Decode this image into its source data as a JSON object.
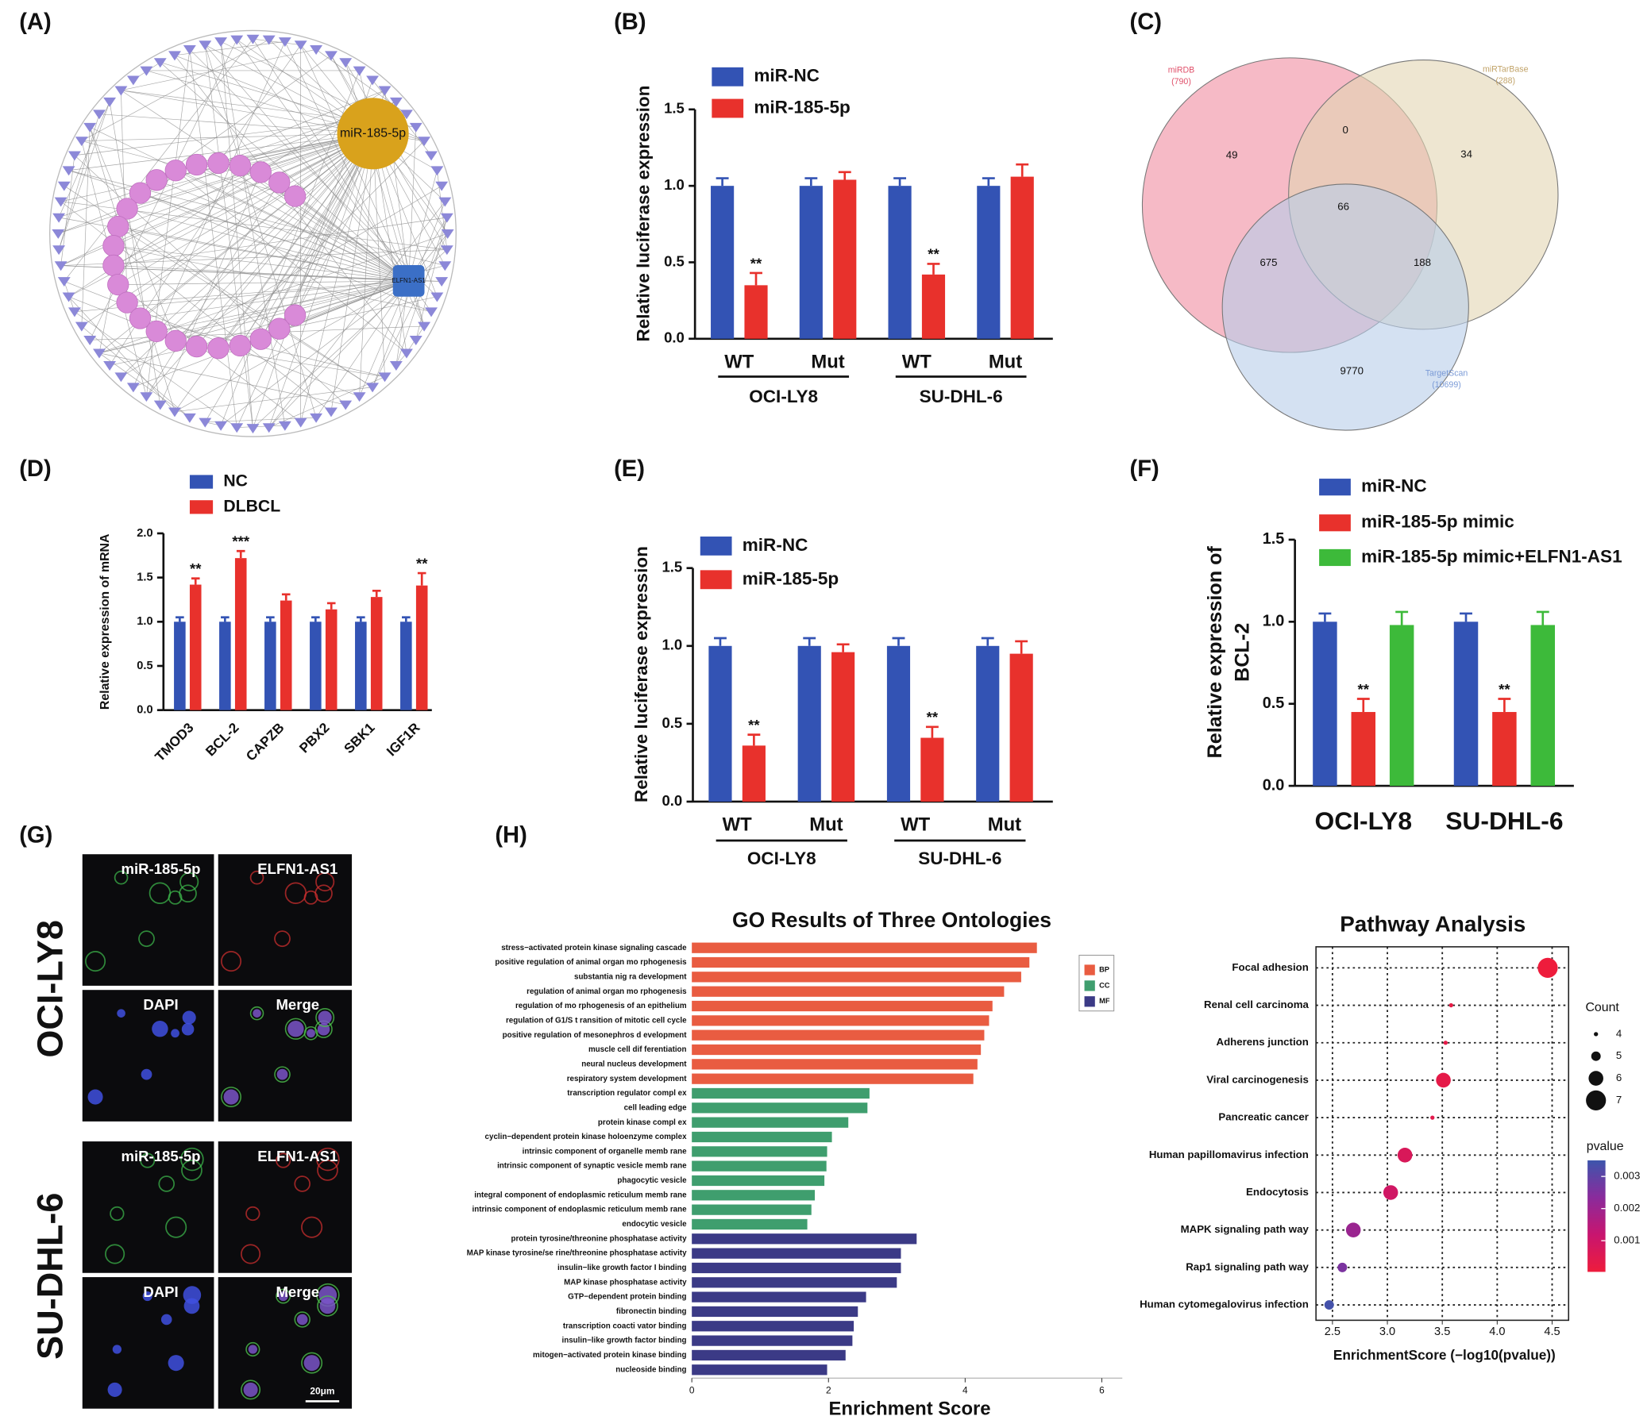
{
  "chart_data": [
    {
      "type": "network",
      "panel": "(A)",
      "nodes": [
        "miR-185-5p",
        "ELFN1-AS1"
      ],
      "node_colors": [
        "#d9a21c",
        "#3b6fc6"
      ],
      "mirna_color": "#d98ad8",
      "mrna_color": "#8c88d8"
    },
    {
      "type": "bar",
      "panel": "(B)",
      "categories": [
        "WT",
        "Mut",
        "WT",
        "Mut"
      ],
      "group_labels": [
        "OCI-LY8",
        "SU-DHL-6"
      ],
      "ylabel": "Relative luciferase expression",
      "ylim": [
        0,
        1.5
      ],
      "yticks": [
        {
          "value": 0,
          "label": "0.0"
        },
        0.5,
        {
          "value": 1,
          "label": "1.0"
        },
        1.5
      ],
      "legend": "top",
      "series": [
        {
          "name": "miR-NC",
          "color": "#3353b4",
          "values": [
            1,
            1,
            1,
            1
          ],
          "errors": [
            0.05,
            0.05,
            0.05,
            0.05
          ]
        },
        {
          "name": "miR-185-5p",
          "color": "#e8312c",
          "values": [
            0.35,
            1.04,
            0.42,
            1.06
          ],
          "errors": [
            0.08,
            0.05,
            0.07,
            0.08
          ],
          "significance": [
            "**",
            null,
            "**",
            null
          ]
        }
      ]
    },
    {
      "type": "venn",
      "panel": "(C)",
      "sets": [
        "miRDB",
        "miRTarBase",
        "TargetScan"
      ],
      "sizes": [
        790,
        288,
        10699
      ],
      "size_labels": [
        "(790)",
        "(288)",
        "(10699)"
      ],
      "colors": [
        "#f08ca0",
        "#e2d5b2",
        "#b8cdea"
      ],
      "text_colors": [
        "#e0506a",
        "#c2a46a",
        "#7a9ad6"
      ],
      "region_values": [
        49,
        0,
        34,
        66,
        675,
        188,
        9770
      ]
    },
    {
      "type": "bar",
      "panel": "(D)",
      "categories": [
        "TMOD3",
        "BCL-2",
        "CAPZB",
        "PBX2",
        "SBK1",
        "IGF1R"
      ],
      "ylabel": "Relative expression of mRNA",
      "ylim": [
        0,
        2
      ],
      "yticks": [
        {
          "value": 0,
          "label": "0.0"
        },
        0.5,
        {
          "value": 1,
          "label": "1.0"
        },
        1.5,
        {
          "value": 2,
          "label": "2.0"
        }
      ],
      "legend": "top",
      "series": [
        {
          "name": "NC",
          "color": "#3353b4",
          "values": [
            1,
            1,
            1,
            1,
            1,
            1
          ],
          "errors": [
            0.05,
            0.05,
            0.05,
            0.05,
            0.05,
            0.05
          ]
        },
        {
          "name": "DLBCL",
          "color": "#e8312c",
          "values": [
            1.42,
            1.72,
            1.24,
            1.14,
            1.28,
            1.41
          ],
          "errors": [
            0.07,
            0.08,
            0.07,
            0.07,
            0.07,
            0.14
          ],
          "significance": [
            "**",
            "***",
            null,
            null,
            null,
            "**"
          ]
        }
      ]
    },
    {
      "type": "bar",
      "panel": "(E)",
      "categories": [
        "WT",
        "Mut",
        "WT",
        "Mut"
      ],
      "group_labels": [
        "OCI-LY8",
        "SU-DHL-6"
      ],
      "ylabel": "Relative luciferase expression",
      "ylim": [
        0,
        1.5
      ],
      "yticks": [
        {
          "value": 0,
          "label": "0.0"
        },
        0.5,
        {
          "value": 1,
          "label": "1.0"
        },
        1.5
      ],
      "legend": "top",
      "series": [
        {
          "name": "miR-NC",
          "color": "#3353b4",
          "values": [
            1,
            1,
            1,
            1
          ],
          "errors": [
            0.05,
            0.05,
            0.05,
            0.05
          ]
        },
        {
          "name": "miR-185-5p",
          "color": "#e8312c",
          "values": [
            0.36,
            0.96,
            0.41,
            0.95
          ],
          "errors": [
            0.07,
            0.05,
            0.07,
            0.08
          ],
          "significance": [
            "**",
            null,
            "**",
            null
          ]
        }
      ]
    },
    {
      "type": "bar",
      "panel": "(F)",
      "categories": [
        "OCI-LY8",
        "SU-DHL-6"
      ],
      "ylabel": [
        "Relative expression of",
        "BCL-2"
      ],
      "ylim": [
        0,
        1.5
      ],
      "yticks": [
        {
          "value": 0,
          "label": "0.0"
        },
        0.5,
        {
          "value": 1,
          "label": "1.0"
        },
        1.5
      ],
      "legend": "top",
      "series": [
        {
          "name": "miR-NC",
          "color": "#3353b4",
          "values": [
            1,
            1
          ],
          "errors": [
            0.05,
            0.05
          ]
        },
        {
          "name": "miR-185-5p mimic",
          "color": "#e8312c",
          "values": [
            0.45,
            0.45
          ],
          "errors": [
            0.08,
            0.08
          ],
          "significance": [
            "**",
            "**"
          ]
        },
        {
          "name": "miR-185-5p mimic+ELFN1-AS1",
          "color": "#3dba3a",
          "values": [
            0.98,
            0.98
          ],
          "errors": [
            0.08,
            0.08
          ]
        }
      ]
    },
    {
      "type": "images",
      "panel": "(G)",
      "rows": [
        "OCI-LY8",
        "SU-DHL-6"
      ],
      "channels": [
        "miR-185-5p",
        "ELFN1-AS1",
        "DAPI",
        "Merge"
      ],
      "scale_bar": "20μm"
    },
    {
      "type": "hbar",
      "panel": "(H)",
      "title": "GO Results of Three Ontologies",
      "xlabel": "Enrichment Score",
      "xlim": [
        0,
        6.3
      ],
      "xticks": [
        0,
        2,
        4,
        6
      ],
      "series": [
        {
          "name": "BP",
          "color": "#e95c41",
          "categories": [
            "stress−activated protein kinase signaling cascade",
            "positive regulation of animal organ mo rphogenesis",
            "substantia nig ra development",
            "regulation of animal organ mo rphogenesis",
            "regulation of mo rphogenesis of an epithelium",
            "regulation of G1/S t ransition of mitotic cell cycle",
            "positive regulation of mesonephros d evelopment",
            "muscle cell dif ferentiation",
            "neural nucleus development",
            "respiratory system development"
          ],
          "values": [
            5.05,
            4.94,
            4.82,
            4.57,
            4.4,
            4.35,
            4.28,
            4.23,
            4.18,
            4.12
          ]
        },
        {
          "name": "CC",
          "color": "#3f9e6e",
          "categories": [
            "transcription regulator compl ex",
            "cell leading edge",
            "protein kinase compl ex",
            "cyclin−dependent protein kinase holoenzyme complex",
            "intrinsic component of organelle memb rane",
            "intrinsic component of synaptic  vesicle memb rane",
            "phagocytic vesicle",
            "integral component of endoplasmic reticulum memb rane",
            "intrinsic component of endoplasmic reticulum memb rane",
            "endocytic vesicle"
          ],
          "values": [
            2.6,
            2.57,
            2.29,
            2.05,
            1.98,
            1.97,
            1.94,
            1.8,
            1.75,
            1.69
          ]
        },
        {
          "name": "MF",
          "color": "#3b3a86",
          "categories": [
            "protein tyrosine/threonine phosphatase activity",
            "MAP kinase tyrosine/se rine/threonine phosphatase activity",
            "insulin−like growth factor I binding",
            "MAP kinase phosphatase activity",
            "GTP−dependent protein binding",
            "fibronectin binding",
            "transcription coacti vator binding",
            "insulin−like growth factor binding",
            "mitogen−activated protein kinase binding",
            "nucleoside binding"
          ],
          "values": [
            3.29,
            3.06,
            3.06,
            3.0,
            2.55,
            2.43,
            2.37,
            2.35,
            2.25,
            1.98
          ]
        }
      ]
    },
    {
      "type": "dot",
      "title": "Pathway Analysis",
      "xlabel": "EnrichmentScore (−log10(pvalue))",
      "categories": [
        "Focal adhesion",
        "Renal cell carcinoma",
        "Adherens junction",
        "Viral carcinogenesis",
        "Pancreatic cancer",
        "Human papillomavirus infection",
        "Endocytosis",
        "MAPK signaling path way",
        "Rap1 signaling path way",
        "Human cytomegalovirus infection"
      ],
      "values": [
        4.46,
        3.58,
        3.53,
        3.51,
        3.41,
        3.16,
        3.03,
        2.69,
        2.59,
        2.47
      ],
      "counts": [
        7,
        4,
        4,
        6,
        4,
        6,
        6,
        6,
        5,
        5
      ],
      "pvalues": [
        3.5e-05,
        0.00026,
        0.0003,
        0.00031,
        0.00039,
        0.00069,
        0.00093,
        0.00204,
        0.00257,
        0.00339
      ],
      "xlim": [
        2.35,
        4.65
      ],
      "xticks": [
        2.5,
        {
          "value": 3,
          "label": "3.0"
        },
        3.5,
        {
          "value": 4,
          "label": "4.0"
        },
        4.5
      ],
      "grid": true,
      "size_title": "Count",
      "size_ticks": [
        4,
        5,
        6,
        7
      ],
      "color_title": "pvalue",
      "clim": [
        3e-05,
        0.0035
      ],
      "cticks": [
        0.001,
        0.002,
        0.003
      ],
      "colors": [
        "#ee1c3c",
        "#c8156f",
        "#8a2b9c",
        "#3d55ac"
      ]
    }
  ]
}
